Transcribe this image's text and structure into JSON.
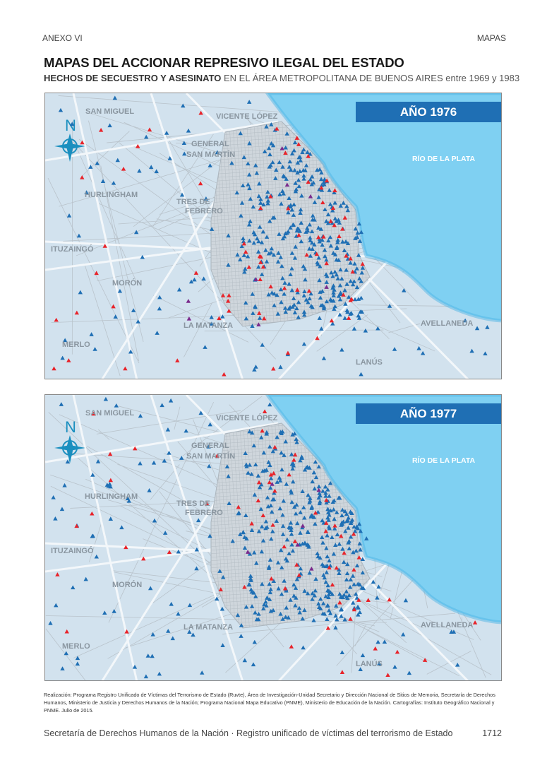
{
  "header": {
    "left": "ANEXO VI",
    "right": "MAPAS"
  },
  "title": "MAPAS DEL ACCIONAR REPRESIVO ILEGAL DEL ESTADO",
  "subtitle": {
    "bold": "HECHOS DE SECUESTRO Y ASESINATO",
    "rest": " EN EL ÁREA METROPOLITANA DE BUENOS AIRES entre 1969 y 1983"
  },
  "maps": [
    {
      "year": "AÑO 1976",
      "seed": 7,
      "marker_counts": {
        "blue": 430,
        "red": 75,
        "purple": 8
      }
    },
    {
      "year": "AÑO 1977",
      "seed": 19,
      "marker_counts": {
        "blue": 470,
        "red": 65,
        "purple": 6
      }
    }
  ],
  "labels": {
    "san_miguel": "SAN MIGUEL",
    "vicente_lopez": "VICENTE LÓPEZ",
    "general": "GENERAL",
    "san_martin": "SAN MARTÍN",
    "hurlingham": "HURLINGHAM",
    "tres_de": "TRES DE",
    "febrero": "FEBRERO",
    "ituzaingo": "ITUZAINGÓ",
    "moron": "MORÓN",
    "la_matanza": "LA MATANZA",
    "merlo": "MERLO",
    "lanus": "LANÚS",
    "avellaneda": "AVELLANEDA",
    "rio": "RÍO DE LA PLATA",
    "north": "N"
  },
  "colors": {
    "blue": "#1f6fb4",
    "red": "#e8232a",
    "purple": "#7b2a8c",
    "land": "#d2e2ee",
    "water": "#7fd0f2"
  },
  "note": "Realización: Programa Registro Unificado de Víctimas del Terrorismo de Estado (Ruvte), Área de Investigación-Unidad Secretario y Dirección Nacional de Sitios de Memoria, Secretaría de Derechos Humanos, Ministerio de Justicia y Derechos Humanos de la Nación; Programa Nacional Mapa Educativo (PNME), Ministerio de Educación de la Nación. Cartografías: Instituto Geográfico Nacional y PNME. Julio de 2015.",
  "footer": {
    "text": "Secretaría de Derechos Humanos de la Nación · Registro unificado de víctimas del terrorismo de Estado",
    "page": "1712"
  }
}
